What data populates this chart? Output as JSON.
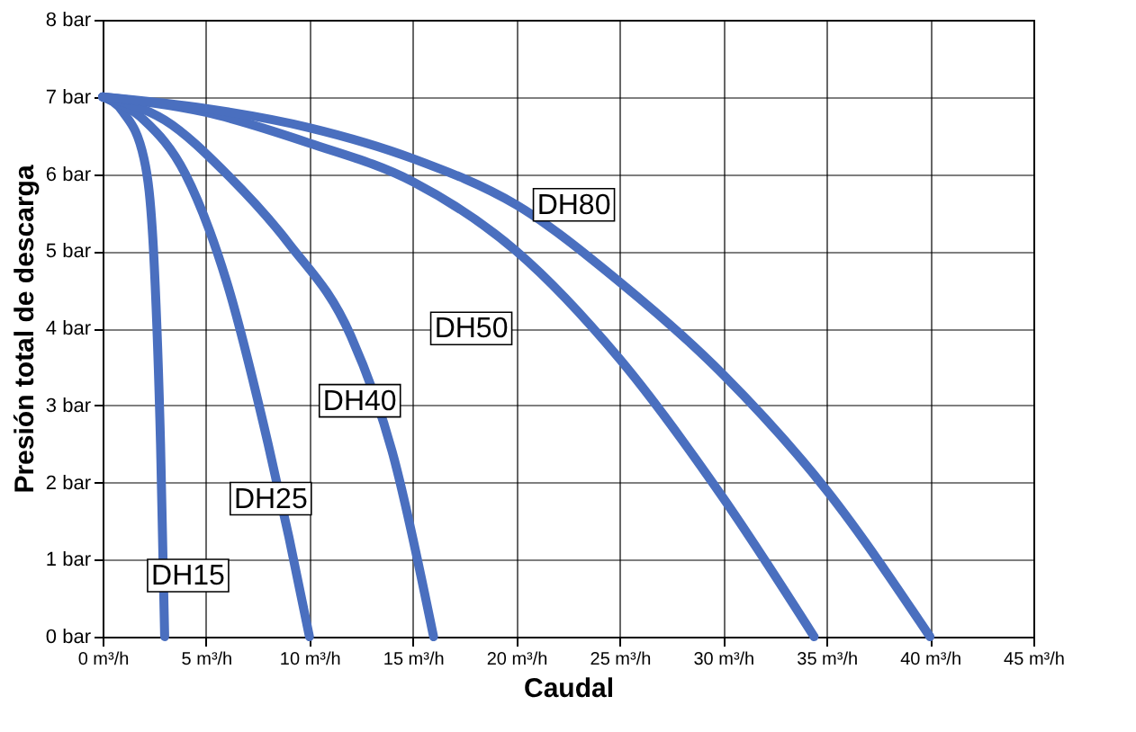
{
  "chart_data": {
    "type": "line",
    "xlabel": "Caudal",
    "ylabel": "Presión total de descarga",
    "xlim": [
      0,
      45
    ],
    "ylim": [
      0,
      8
    ],
    "xticks": [
      {
        "value": 0,
        "label": "0 m³/h"
      },
      {
        "value": 5,
        "label": "5 m³/h"
      },
      {
        "value": 10,
        "label": "10 m³/h"
      },
      {
        "value": 15,
        "label": "15 m³/h"
      },
      {
        "value": 20,
        "label": "20 m³/h"
      },
      {
        "value": 25,
        "label": "25 m³/h"
      },
      {
        "value": 30,
        "label": "30 m³/h"
      },
      {
        "value": 35,
        "label": "35 m³/h"
      },
      {
        "value": 40,
        "label": "40 m³/h"
      },
      {
        "value": 45,
        "label": "45 m³/h"
      }
    ],
    "yticks": [
      {
        "value": 0,
        "label": "0 bar"
      },
      {
        "value": 1,
        "label": "1 bar"
      },
      {
        "value": 2,
        "label": "2 bar"
      },
      {
        "value": 3,
        "label": "3 bar"
      },
      {
        "value": 4,
        "label": "4 bar"
      },
      {
        "value": 5,
        "label": "5 bar"
      },
      {
        "value": 6,
        "label": "6 bar"
      },
      {
        "value": 7,
        "label": "7 bar"
      },
      {
        "value": 8,
        "label": "8 bar"
      }
    ],
    "grid": true,
    "marker": "none",
    "line_style": "solid",
    "series": [
      {
        "name": "DH15",
        "color": "#4a6fbf",
        "x": [
          0,
          1,
          2,
          2.5,
          2.8,
          3
        ],
        "values": [
          7,
          6.8,
          6.2,
          4.8,
          2.5,
          0
        ]
      },
      {
        "name": "DH25",
        "color": "#4a6fbf",
        "x": [
          0,
          2,
          4,
          6,
          8,
          9,
          10
        ],
        "values": [
          7,
          6.7,
          6,
          4.6,
          2.5,
          1.3,
          0
        ]
      },
      {
        "name": "DH40",
        "color": "#4a6fbf",
        "x": [
          0,
          3,
          6,
          9,
          12,
          14,
          16
        ],
        "values": [
          7,
          6.7,
          6,
          5.1,
          3.9,
          2.4,
          0
        ]
      },
      {
        "name": "DH50",
        "color": "#4a6fbf",
        "x": [
          0,
          5,
          10,
          15,
          20,
          25,
          30,
          34.4
        ],
        "values": [
          7,
          6.8,
          6.4,
          5.9,
          5,
          3.6,
          1.8,
          0
        ]
      },
      {
        "name": "DH80",
        "color": "#4a6fbf",
        "x": [
          0,
          5,
          10,
          15,
          20,
          25,
          30,
          35,
          40
        ],
        "values": [
          7,
          6.85,
          6.6,
          6.2,
          5.6,
          4.6,
          3.4,
          1.9,
          0
        ]
      }
    ]
  }
}
